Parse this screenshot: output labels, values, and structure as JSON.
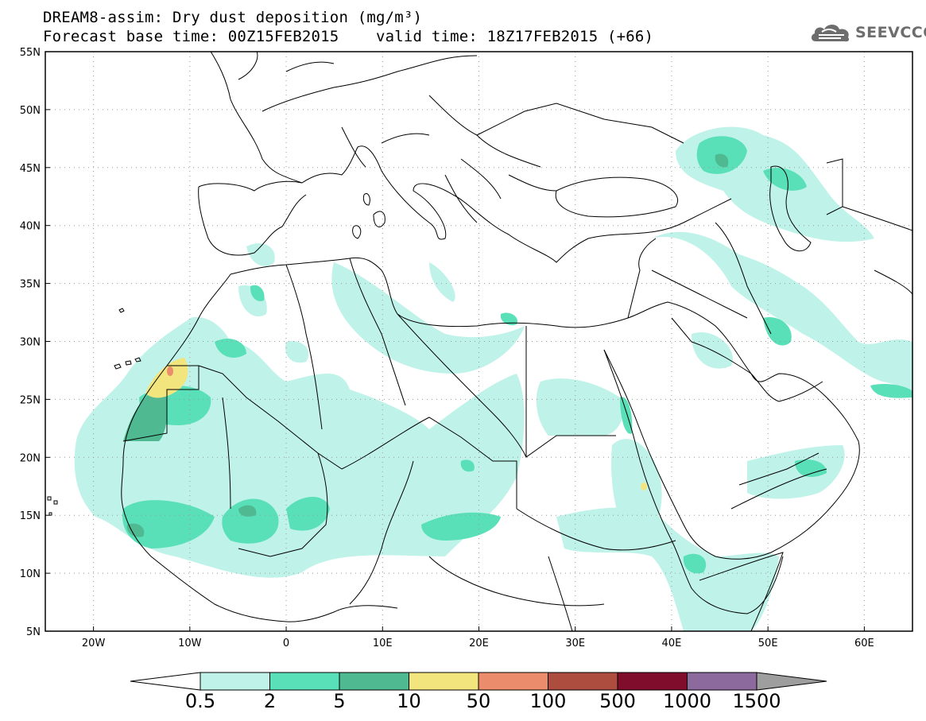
{
  "title": {
    "line1": "DREAM8-assim: Dry dust deposition (mg/m³)",
    "line2": "Forecast base time: 00Z15FEB2015    valid time: 18Z17FEB2015 (+66)"
  },
  "logo": {
    "text": "SEEVCCC",
    "icon": "cloud-icon"
  },
  "map": {
    "projection": "lat-lon",
    "lon_range": [
      -25,
      65
    ],
    "lat_range": [
      5,
      55
    ],
    "grid": "dotted",
    "lat_ticks": [
      "55N",
      "50N",
      "45N",
      "40N",
      "35N",
      "30N",
      "25N",
      "20N",
      "15N",
      "10N",
      "5N"
    ],
    "lon_ticks": [
      "20W",
      "10W",
      "0",
      "10E",
      "20E",
      "30E",
      "40E",
      "50E",
      "60E"
    ]
  },
  "legend": {
    "colors": [
      "#bff3e9",
      "#5ae0b8",
      "#4fb992",
      "#f3e57d",
      "#eb8d6c",
      "#ac4d40",
      "#800d2b",
      "#8c6a9d",
      "#9e9e9e"
    ],
    "labels": [
      "0.5",
      "2",
      "5",
      "10",
      "50",
      "100",
      "500",
      "1000",
      "1500"
    ]
  }
}
